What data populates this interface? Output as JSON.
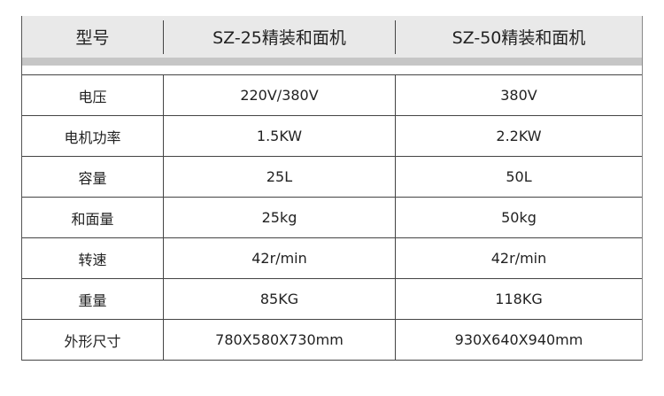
{
  "header": [
    "型号",
    "SZ-25精装和面机",
    "SZ-50精装和面机"
  ],
  "rows": [
    [
      "电压",
      "220V/380V",
      "380V"
    ],
    [
      "电机功率",
      "1.5KW",
      "2.2KW"
    ],
    [
      "容量",
      "25L",
      "50L"
    ],
    [
      "和面量",
      "25kg",
      "50kg"
    ],
    [
      "转速",
      "42r/min",
      "42r/min"
    ],
    [
      "重量",
      "85KG",
      "118KG"
    ],
    [
      "外形尺寸",
      "780X580X730mm",
      "930X640X940mm"
    ]
  ]
}
